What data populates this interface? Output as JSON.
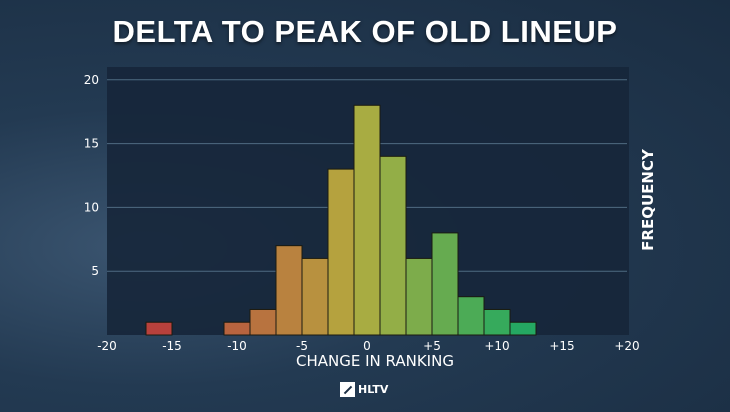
{
  "title": "DELTA TO PEAK OF OLD LINEUP",
  "logo_text": "HLTV",
  "chart_data": {
    "type": "bar",
    "title": "DELTA TO PEAK OF OLD LINEUP",
    "xlabel": "CHANGE IN RANKING",
    "ylabel": "FREQUENCY",
    "xlim": [
      -20,
      20
    ],
    "ylim": [
      0,
      21
    ],
    "grid": true,
    "xticks": [
      -20,
      -15,
      -10,
      -5,
      0,
      5,
      10,
      15,
      20
    ],
    "xtick_labels": [
      "-20",
      "-15",
      "-10",
      "-5",
      "0",
      "+5",
      "+10",
      "+15",
      "+20"
    ],
    "yticks": [
      5,
      10,
      15,
      20
    ],
    "ytick_labels": [
      "5",
      "10",
      "15",
      "20"
    ],
    "bins": [
      {
        "from": -17,
        "to": -15,
        "value": 1,
        "color": "#b8413c"
      },
      {
        "from": -11,
        "to": -9,
        "value": 1,
        "color": "#b8643f"
      },
      {
        "from": -9,
        "to": -7,
        "value": 2,
        "color": "#b8733f"
      },
      {
        "from": -7,
        "to": -5,
        "value": 7,
        "color": "#b9823f"
      },
      {
        "from": -5,
        "to": -3,
        "value": 6,
        "color": "#b8913f"
      },
      {
        "from": -3,
        "to": -1,
        "value": 13,
        "color": "#b5a23e"
      },
      {
        "from": -1,
        "to": 1,
        "value": 18,
        "color": "#a8ac42"
      },
      {
        "from": 1,
        "to": 3,
        "value": 14,
        "color": "#93ae47"
      },
      {
        "from": 3,
        "to": 5,
        "value": 6,
        "color": "#7dac4b"
      },
      {
        "from": 5,
        "to": 7,
        "value": 8,
        "color": "#66ab50"
      },
      {
        "from": 7,
        "to": 9,
        "value": 3,
        "color": "#4cab56"
      },
      {
        "from": 9,
        "to": 11,
        "value": 2,
        "color": "#36aa5c"
      },
      {
        "from": 11,
        "to": 13,
        "value": 1,
        "color": "#25a862"
      }
    ]
  }
}
